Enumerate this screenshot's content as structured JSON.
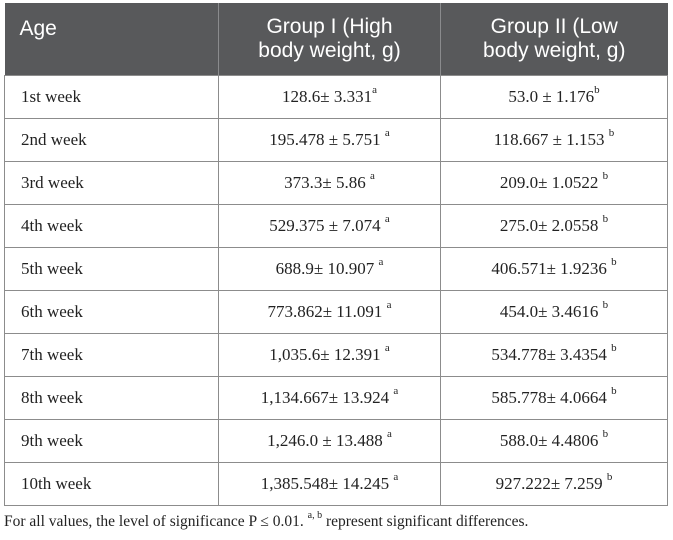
{
  "table": {
    "headers": {
      "age": "Age",
      "group1_line1": "Group I (High",
      "group1_line2": "body weight, g)",
      "group2_line1": "Group II (Low",
      "group2_line2": "body weight, g)"
    },
    "rows": [
      {
        "age": "1st week",
        "g1": "128.6± 3.331",
        "g1_sup": "a",
        "g2": "53.0 ± 1.176",
        "g2_sup": "b"
      },
      {
        "age": "2nd week",
        "g1": "195.478 ± 5.751 ",
        "g1_sup": "a",
        "g2": "118.667 ± 1.153 ",
        "g2_sup": "b"
      },
      {
        "age": "3rd week",
        "g1": "373.3± 5.86 ",
        "g1_sup": "a",
        "g2": "209.0± 1.0522 ",
        "g2_sup": "b"
      },
      {
        "age": "4th week",
        "g1": "529.375 ± 7.074 ",
        "g1_sup": "a",
        "g2": "275.0± 2.0558 ",
        "g2_sup": "b"
      },
      {
        "age": "5th week",
        "g1": "688.9± 10.907 ",
        "g1_sup": "a",
        "g2": "406.571± 1.9236 ",
        "g2_sup": "b"
      },
      {
        "age": "6th week",
        "g1": "773.862± 11.091 ",
        "g1_sup": "a",
        "g2": "454.0± 3.4616 ",
        "g2_sup": "b"
      },
      {
        "age": "7th week",
        "g1": "1,035.6± 12.391 ",
        "g1_sup": "a",
        "g2": "534.778± 3.4354 ",
        "g2_sup": "b"
      },
      {
        "age": "8th week",
        "g1": "1,134.667± 13.924 ",
        "g1_sup": "a",
        "g2": "585.778± 4.0664 ",
        "g2_sup": "b"
      },
      {
        "age": "9th week",
        "g1": "1,246.0 ± 13.488 ",
        "g1_sup": "a",
        "g2": "588.0± 4.4806 ",
        "g2_sup": "b"
      },
      {
        "age": "10th week",
        "g1": "1,385.548± 14.245 ",
        "g1_sup": "a",
        "g2": "927.222± 7.259 ",
        "g2_sup": "b"
      }
    ]
  },
  "footnote": {
    "text_before": "For all values, the level of significance P ≤ 0.01. ",
    "sup": "a, b",
    "text_after": " represent significant differences."
  },
  "colors": {
    "header_bg": "#58595b",
    "header_text": "#ffffff",
    "border": "#8c8c8c"
  }
}
